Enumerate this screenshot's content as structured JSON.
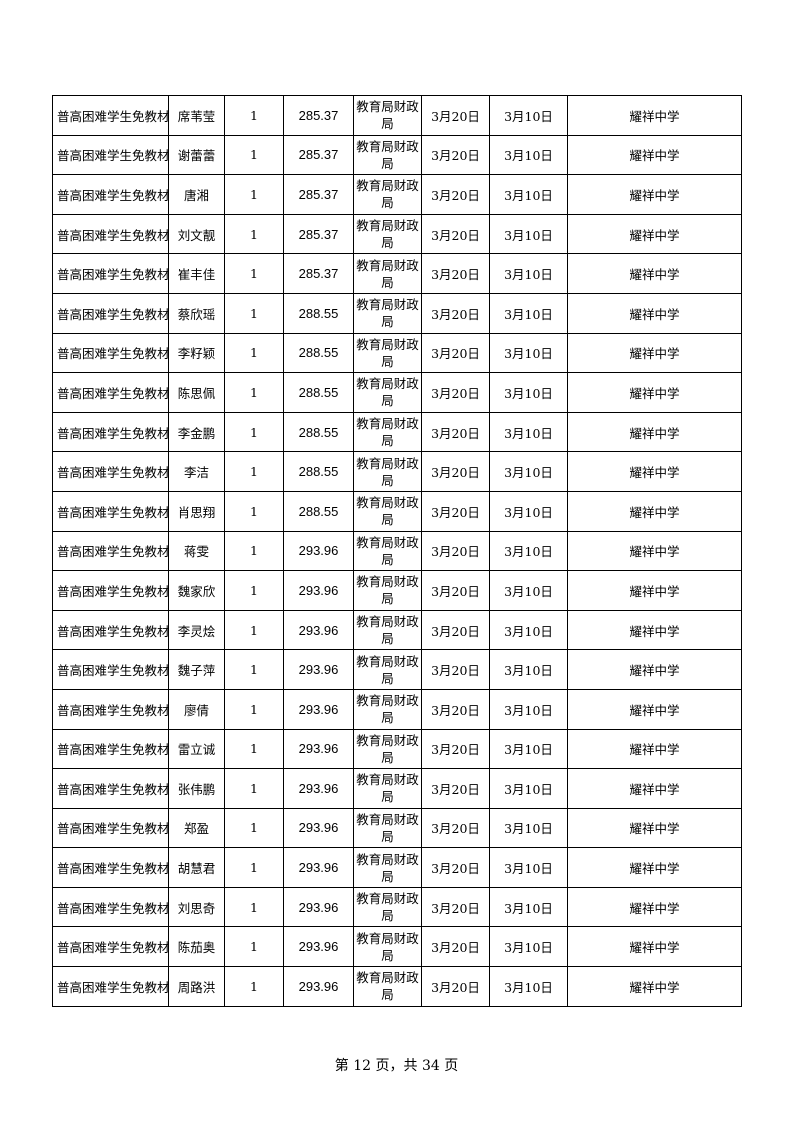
{
  "table": {
    "rows": [
      {
        "item": "普高困难学生免教材",
        "name": "席苇莹",
        "count": "1",
        "amount": "285.37",
        "org": "教育局财政局",
        "date1": "3月20日",
        "date2": "3月10日",
        "school": "耀祥中学"
      },
      {
        "item": "普高困难学生免教材",
        "name": "谢蕾蕾",
        "count": "1",
        "amount": "285.37",
        "org": "教育局财政局",
        "date1": "3月20日",
        "date2": "3月10日",
        "school": "耀祥中学"
      },
      {
        "item": "普高困难学生免教材",
        "name": "唐湘",
        "count": "1",
        "amount": "285.37",
        "org": "教育局财政局",
        "date1": "3月20日",
        "date2": "3月10日",
        "school": "耀祥中学"
      },
      {
        "item": "普高困难学生免教材",
        "name": "刘文靓",
        "count": "1",
        "amount": "285.37",
        "org": "教育局财政局",
        "date1": "3月20日",
        "date2": "3月10日",
        "school": "耀祥中学"
      },
      {
        "item": "普高困难学生免教材",
        "name": "崔丰佳",
        "count": "1",
        "amount": "285.37",
        "org": "教育局财政局",
        "date1": "3月20日",
        "date2": "3月10日",
        "school": "耀祥中学"
      },
      {
        "item": "普高困难学生免教材",
        "name": "蔡欣瑶",
        "count": "1",
        "amount": "288.55",
        "org": "教育局财政局",
        "date1": "3月20日",
        "date2": "3月10日",
        "school": "耀祥中学"
      },
      {
        "item": "普高困难学生免教材",
        "name": "李籽颖",
        "count": "1",
        "amount": "288.55",
        "org": "教育局财政局",
        "date1": "3月20日",
        "date2": "3月10日",
        "school": "耀祥中学"
      },
      {
        "item": "普高困难学生免教材",
        "name": "陈思佩",
        "count": "1",
        "amount": "288.55",
        "org": "教育局财政局",
        "date1": "3月20日",
        "date2": "3月10日",
        "school": "耀祥中学"
      },
      {
        "item": "普高困难学生免教材",
        "name": "李金鹏",
        "count": "1",
        "amount": "288.55",
        "org": "教育局财政局",
        "date1": "3月20日",
        "date2": "3月10日",
        "school": "耀祥中学"
      },
      {
        "item": "普高困难学生免教材",
        "name": "李洁",
        "count": "1",
        "amount": "288.55",
        "org": "教育局财政局",
        "date1": "3月20日",
        "date2": "3月10日",
        "school": "耀祥中学"
      },
      {
        "item": "普高困难学生免教材",
        "name": "肖思翔",
        "count": "1",
        "amount": "288.55",
        "org": "教育局财政局",
        "date1": "3月20日",
        "date2": "3月10日",
        "school": "耀祥中学"
      },
      {
        "item": "普高困难学生免教材",
        "name": "蒋雯",
        "count": "1",
        "amount": "293.96",
        "org": "教育局财政局",
        "date1": "3月20日",
        "date2": "3月10日",
        "school": "耀祥中学"
      },
      {
        "item": "普高困难学生免教材",
        "name": "魏家欣",
        "count": "1",
        "amount": "293.96",
        "org": "教育局财政局",
        "date1": "3月20日",
        "date2": "3月10日",
        "school": "耀祥中学"
      },
      {
        "item": "普高困难学生免教材",
        "name": "李灵烩",
        "count": "1",
        "amount": "293.96",
        "org": "教育局财政局",
        "date1": "3月20日",
        "date2": "3月10日",
        "school": "耀祥中学"
      },
      {
        "item": "普高困难学生免教材",
        "name": "魏子萍",
        "count": "1",
        "amount": "293.96",
        "org": "教育局财政局",
        "date1": "3月20日",
        "date2": "3月10日",
        "school": "耀祥中学"
      },
      {
        "item": "普高困难学生免教材",
        "name": "廖倩",
        "count": "1",
        "amount": "293.96",
        "org": "教育局财政局",
        "date1": "3月20日",
        "date2": "3月10日",
        "school": "耀祥中学"
      },
      {
        "item": "普高困难学生免教材",
        "name": "雷立诚",
        "count": "1",
        "amount": "293.96",
        "org": "教育局财政局",
        "date1": "3月20日",
        "date2": "3月10日",
        "school": "耀祥中学"
      },
      {
        "item": "普高困难学生免教材",
        "name": "张伟鹏",
        "count": "1",
        "amount": "293.96",
        "org": "教育局财政局",
        "date1": "3月20日",
        "date2": "3月10日",
        "school": "耀祥中学"
      },
      {
        "item": "普高困难学生免教材",
        "name": "郑盈",
        "count": "1",
        "amount": "293.96",
        "org": "教育局财政局",
        "date1": "3月20日",
        "date2": "3月10日",
        "school": "耀祥中学"
      },
      {
        "item": "普高困难学生免教材",
        "name": "胡慧君",
        "count": "1",
        "amount": "293.96",
        "org": "教育局财政局",
        "date1": "3月20日",
        "date2": "3月10日",
        "school": "耀祥中学"
      },
      {
        "item": "普高困难学生免教材",
        "name": "刘思奇",
        "count": "1",
        "amount": "293.96",
        "org": "教育局财政局",
        "date1": "3月20日",
        "date2": "3月10日",
        "school": "耀祥中学"
      },
      {
        "item": "普高困难学生免教材",
        "name": "陈茄奥",
        "count": "1",
        "amount": "293.96",
        "org": "教育局财政局",
        "date1": "3月20日",
        "date2": "3月10日",
        "school": "耀祥中学"
      },
      {
        "item": "普高困难学生免教材",
        "name": "周路洪",
        "count": "1",
        "amount": "293.96",
        "org": "教育局财政局",
        "date1": "3月20日",
        "date2": "3月10日",
        "school": "耀祥中学"
      }
    ]
  },
  "footer": {
    "page_text": "第 12 页，共 34 页"
  }
}
